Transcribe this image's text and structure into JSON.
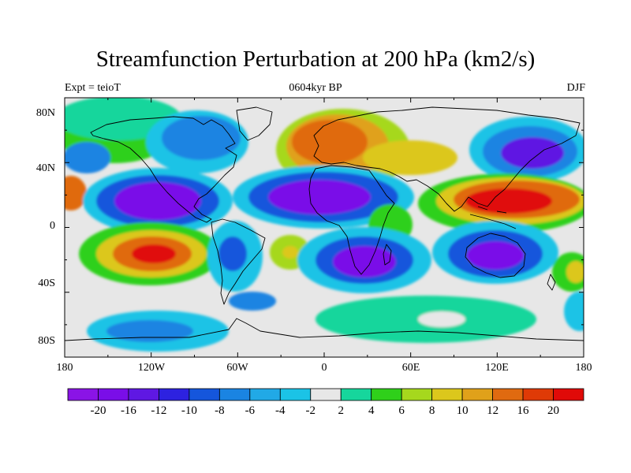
{
  "title": "Streamfunction Perturbation at 200 hPa (km2/s)",
  "subtitle_left": "Expt = teioT",
  "subtitle_center": "0604kyr BP",
  "subtitle_right": "DJF",
  "lat_ticks": [
    "80N",
    "40N",
    "0",
    "40S",
    "80S"
  ],
  "lon_ticks": [
    "180",
    "120W",
    "60W",
    "0",
    "60E",
    "120E",
    "180"
  ],
  "colorbar": {
    "labels": [
      "-20",
      "-16",
      "-12",
      "-10",
      "-8",
      "-6",
      "-4",
      "-2",
      "2",
      "4",
      "6",
      "8",
      "10",
      "12",
      "16",
      "20"
    ],
    "colors": [
      "#8a14e6",
      "#7a0ee8",
      "#5f18e3",
      "#2d22e0",
      "#1556dc",
      "#1a84e2",
      "#21a9e6",
      "#1bc3e6",
      "#e7e7e7",
      "#16d69c",
      "#2fd01a",
      "#a6d81d",
      "#dcc71c",
      "#e0a11a",
      "#e06a10",
      "#df3a06",
      "#e00a08"
    ]
  }
}
